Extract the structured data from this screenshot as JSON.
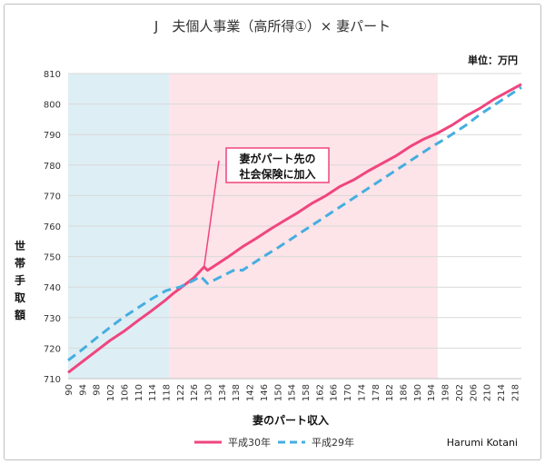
{
  "chart_data": {
    "type": "line",
    "title": "J　夫個人事業（高所得①）× 妻パート",
    "unit_label": "単位：万円",
    "xlabel": "妻のパート収入",
    "ylabel": "世帯手取額",
    "ylim": [
      710,
      810
    ],
    "yticks": [
      710,
      720,
      730,
      740,
      750,
      760,
      770,
      780,
      790,
      800,
      810
    ],
    "xlim": [
      90,
      220
    ],
    "xticks": [
      90,
      94,
      98,
      102,
      106,
      110,
      114,
      118,
      122,
      126,
      130,
      134,
      138,
      142,
      146,
      150,
      154,
      158,
      162,
      166,
      170,
      174,
      178,
      182,
      186,
      190,
      194,
      198,
      202,
      206,
      210,
      214,
      218
    ],
    "bands": [
      {
        "from": 90,
        "to": 119,
        "color": "#deeef5"
      },
      {
        "from": 119,
        "to": 196,
        "color": "#fde4e8"
      }
    ],
    "series": [
      {
        "name": "平成30年",
        "color": "#f0457e",
        "dash": false,
        "points": [
          [
            90,
            712
          ],
          [
            94,
            715.5
          ],
          [
            98,
            719
          ],
          [
            102,
            722.5
          ],
          [
            106,
            725.5
          ],
          [
            110,
            729
          ],
          [
            114,
            732.3
          ],
          [
            118,
            735.8
          ],
          [
            120,
            737.8
          ],
          [
            122,
            739.5
          ],
          [
            126,
            743
          ],
          [
            129,
            746.6
          ],
          [
            130,
            745.5
          ],
          [
            132,
            747
          ],
          [
            136,
            750
          ],
          [
            140,
            753.2
          ],
          [
            144,
            756
          ],
          [
            148,
            759
          ],
          [
            152,
            761.8
          ],
          [
            156,
            764.5
          ],
          [
            160,
            767.5
          ],
          [
            164,
            770
          ],
          [
            168,
            773
          ],
          [
            172,
            775.2
          ],
          [
            176,
            778
          ],
          [
            180,
            780.5
          ],
          [
            184,
            783
          ],
          [
            188,
            786
          ],
          [
            192,
            788.5
          ],
          [
            196,
            790.5
          ],
          [
            200,
            793
          ],
          [
            204,
            796
          ],
          [
            208,
            798.5
          ],
          [
            212,
            801.5
          ],
          [
            216,
            804
          ],
          [
            220,
            806.5
          ]
        ]
      },
      {
        "name": "平成29年",
        "color": "#45aee0",
        "dash": true,
        "points": [
          [
            90,
            716
          ],
          [
            94,
            719.5
          ],
          [
            98,
            723.2
          ],
          [
            102,
            726.8
          ],
          [
            106,
            730.2
          ],
          [
            110,
            733.2
          ],
          [
            114,
            736.2
          ],
          [
            118,
            738.8
          ],
          [
            120,
            739.5
          ],
          [
            122,
            740
          ],
          [
            126,
            742.2
          ],
          [
            128,
            743.5
          ],
          [
            130,
            741.2
          ],
          [
            134,
            743.5
          ],
          [
            138,
            745.8
          ],
          [
            140,
            745.5
          ],
          [
            142,
            747
          ],
          [
            146,
            750
          ],
          [
            150,
            752.8
          ],
          [
            154,
            755.8
          ],
          [
            158,
            758.8
          ],
          [
            162,
            761.8
          ],
          [
            166,
            764.8
          ],
          [
            170,
            767.8
          ],
          [
            174,
            770.8
          ],
          [
            178,
            773.8
          ],
          [
            182,
            776.8
          ],
          [
            186,
            779.8
          ],
          [
            190,
            782.8
          ],
          [
            194,
            785.8
          ],
          [
            198,
            788.5
          ],
          [
            200,
            790
          ],
          [
            204,
            793
          ],
          [
            208,
            796.5
          ],
          [
            212,
            799.5
          ],
          [
            216,
            802.5
          ],
          [
            220,
            805.5
          ]
        ]
      }
    ],
    "annotation": {
      "lines": [
        "妻がパート先の",
        "社会保険に加入"
      ],
      "target_x": 129,
      "target_y": 746.6
    },
    "credit": "Harumi Kotani"
  }
}
